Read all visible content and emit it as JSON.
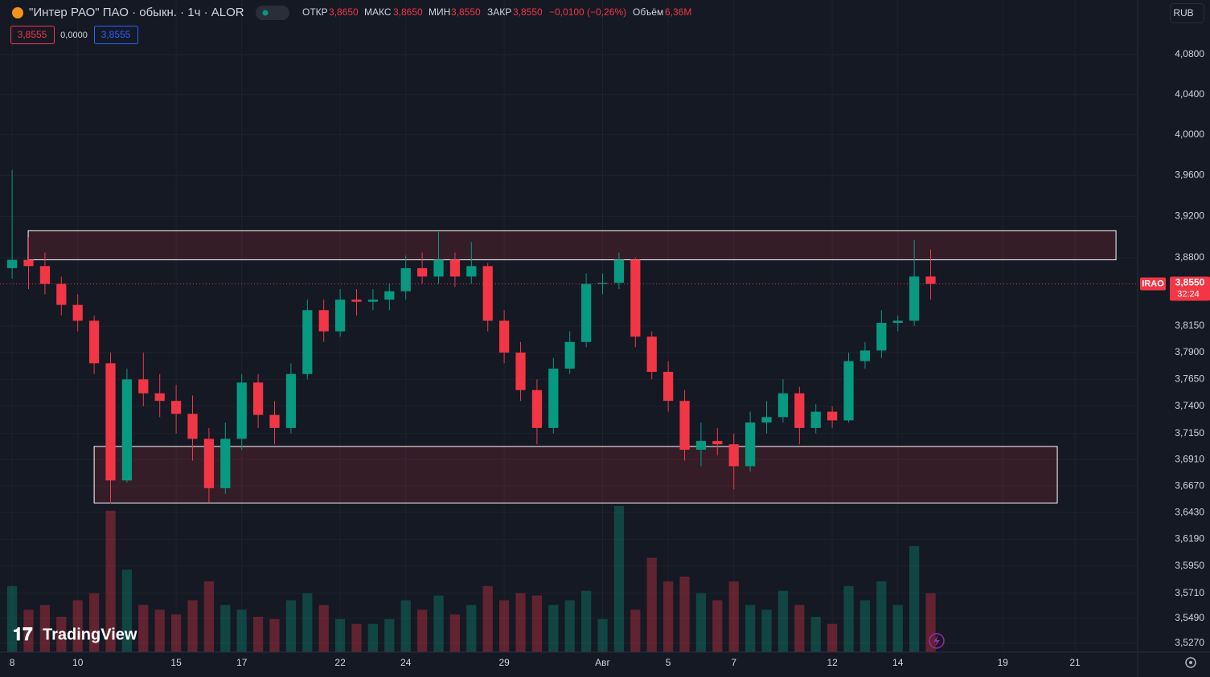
{
  "header": {
    "symbol": "\"Интер РАО\" ПАО · обыкн. · 1ч · ALOR",
    "open_label": "ОТКР",
    "open": "3,8650",
    "high_label": "МАКС",
    "high": "3,8650",
    "low_label": "МИН",
    "low": "3,8550",
    "close_label": "ЗАКР",
    "close": "3,8550",
    "change": "−0,0100 (−0,26%)",
    "volume_label": "Объём",
    "volume": "6,36M",
    "indicator": [
      "3,8555",
      "0,0000",
      "3,8555"
    ],
    "currency": "RUB",
    "logo": "TradingView"
  },
  "chart_data": {
    "type": "candlestick",
    "log": true,
    "grid": true,
    "up_color": "#089981",
    "down_color": "#f23645",
    "zone_color": "#f23645",
    "xlim": [
      -0.37,
      34.31
    ],
    "xticks": [
      {
        "value": 0,
        "label": "8"
      },
      {
        "value": 2,
        "label": "10"
      },
      {
        "value": 5,
        "label": "15"
      },
      {
        "value": 7,
        "label": "17"
      },
      {
        "value": 10,
        "label": "22"
      },
      {
        "value": 12,
        "label": "24"
      },
      {
        "value": 15,
        "label": "29"
      },
      {
        "value": 18,
        "label": "Авг"
      },
      {
        "value": 20,
        "label": "5"
      },
      {
        "value": 22,
        "label": "7"
      },
      {
        "value": 25,
        "label": "12"
      },
      {
        "value": 27,
        "label": "14"
      },
      {
        "value": 30.2,
        "label": "19"
      },
      {
        "value": 32.4,
        "label": "21"
      }
    ],
    "ylim": [
      3.5193,
      4.1355
    ],
    "yticks": [
      {
        "value": 4.08,
        "label": "4,0800"
      },
      {
        "value": 4.04,
        "label": "4,0400"
      },
      {
        "value": 4.0,
        "label": "4,0000"
      },
      {
        "value": 3.96,
        "label": "3,9600"
      },
      {
        "value": 3.92,
        "label": "3,9200"
      },
      {
        "value": 3.88,
        "label": "3,8800"
      },
      {
        "value": 3.815,
        "label": "3,8150"
      },
      {
        "value": 3.79,
        "label": "3,7900"
      },
      {
        "value": 3.765,
        "label": "3,7650"
      },
      {
        "value": 3.74,
        "label": "3,7400"
      },
      {
        "value": 3.715,
        "label": "3,7150"
      },
      {
        "value": 3.691,
        "label": "3,6910"
      },
      {
        "value": 3.667,
        "label": "3,6670"
      },
      {
        "value": 3.643,
        "label": "3,6430"
      },
      {
        "value": 3.619,
        "label": "3,6190"
      },
      {
        "value": 3.595,
        "label": "3,5950"
      },
      {
        "value": 3.571,
        "label": "3,5710"
      },
      {
        "value": 3.549,
        "label": "3,5490"
      },
      {
        "value": 3.527,
        "label": "3,5270"
      }
    ],
    "x": [
      0,
      0.5,
      1,
      1.5,
      2,
      2.5,
      3,
      3.5,
      4,
      4.5,
      5,
      5.5,
      6,
      6.5,
      7,
      7.5,
      8,
      8.5,
      9,
      9.5,
      10,
      10.5,
      11,
      11.5,
      12,
      12.5,
      13,
      13.5,
      14,
      14.5,
      15,
      15.5,
      16,
      16.5,
      17,
      17.5,
      18,
      18.5,
      19,
      19.5,
      20,
      20.5,
      21,
      21.5,
      22,
      22.5,
      23,
      23.5,
      24,
      24.5,
      25,
      25.5,
      26,
      26.5,
      27,
      27.5,
      28
    ],
    "open": [
      3.87,
      3.878,
      3.872,
      3.855,
      3.835,
      3.82,
      3.78,
      3.672,
      3.765,
      3.752,
      3.745,
      3.733,
      3.71,
      3.665,
      3.71,
      3.762,
      3.732,
      3.72,
      3.77,
      3.83,
      3.81,
      3.84,
      3.838,
      3.84,
      3.848,
      3.87,
      3.862,
      3.878,
      3.862,
      3.872,
      3.82,
      3.79,
      3.755,
      3.72,
      3.775,
      3.8,
      3.855,
      3.856,
      3.878,
      3.805,
      3.772,
      3.745,
      3.7,
      3.708,
      3.705,
      3.685,
      3.725,
      3.73,
      3.752,
      3.72,
      3.735,
      3.727,
      3.782,
      3.792,
      3.818,
      3.82,
      3.862
    ],
    "high": [
      3.965,
      3.9,
      3.885,
      3.862,
      3.845,
      3.825,
      3.79,
      3.775,
      3.79,
      3.77,
      3.76,
      3.75,
      3.72,
      3.725,
      3.77,
      3.77,
      3.745,
      3.78,
      3.84,
      3.84,
      3.85,
      3.85,
      3.85,
      3.855,
      3.882,
      3.885,
      3.905,
      3.885,
      3.895,
      3.875,
      3.83,
      3.8,
      3.765,
      3.785,
      3.81,
      3.865,
      3.865,
      3.885,
      3.88,
      3.81,
      3.782,
      3.755,
      3.725,
      3.72,
      3.715,
      3.735,
      3.745,
      3.765,
      3.758,
      3.742,
      3.74,
      3.79,
      3.8,
      3.83,
      3.825,
      3.897,
      3.888
    ],
    "low": [
      3.86,
      3.85,
      3.845,
      3.825,
      3.81,
      3.77,
      3.651,
      3.67,
      3.74,
      3.73,
      3.715,
      3.69,
      3.652,
      3.66,
      3.7,
      3.72,
      3.705,
      3.715,
      3.765,
      3.8,
      3.805,
      3.825,
      3.83,
      3.83,
      3.84,
      3.855,
      3.855,
      3.852,
      3.855,
      3.81,
      3.78,
      3.745,
      3.705,
      3.715,
      3.77,
      3.795,
      3.845,
      3.85,
      3.795,
      3.765,
      3.735,
      3.69,
      3.685,
      3.695,
      3.664,
      3.68,
      3.715,
      3.725,
      3.705,
      3.715,
      3.72,
      3.725,
      3.775,
      3.785,
      3.81,
      3.815,
      3.84
    ],
    "close": [
      3.878,
      3.872,
      3.855,
      3.835,
      3.82,
      3.78,
      3.672,
      3.765,
      3.752,
      3.745,
      3.733,
      3.71,
      3.665,
      3.71,
      3.762,
      3.732,
      3.72,
      3.77,
      3.83,
      3.81,
      3.84,
      3.838,
      3.84,
      3.848,
      3.87,
      3.862,
      3.878,
      3.862,
      3.872,
      3.82,
      3.79,
      3.755,
      3.72,
      3.775,
      3.8,
      3.855,
      3.856,
      3.878,
      3.805,
      3.772,
      3.745,
      3.7,
      3.708,
      3.705,
      3.685,
      3.725,
      3.73,
      3.752,
      3.72,
      3.735,
      3.727,
      3.782,
      3.792,
      3.818,
      3.82,
      3.862,
      3.855
    ],
    "volume": [
      28,
      18,
      20,
      15,
      22,
      25,
      60,
      35,
      20,
      18,
      16,
      22,
      30,
      20,
      18,
      15,
      14,
      22,
      25,
      20,
      14,
      12,
      12,
      14,
      22,
      18,
      24,
      16,
      20,
      28,
      22,
      25,
      24,
      20,
      22,
      26,
      14,
      62,
      18,
      40,
      30,
      32,
      25,
      22,
      30,
      20,
      18,
      26,
      20,
      15,
      12,
      28,
      22,
      30,
      20,
      45,
      25
    ],
    "zones": [
      {
        "x": [
          0.49,
          33.65
        ],
        "y": [
          3.878,
          3.906
        ]
      },
      {
        "x": [
          2.5,
          31.86
        ],
        "y": [
          3.6516,
          3.703
        ]
      }
    ],
    "last_price": {
      "value": 3.855,
      "label": "3,8550"
    },
    "ticker": "IRAO",
    "countdown": "32:24"
  }
}
